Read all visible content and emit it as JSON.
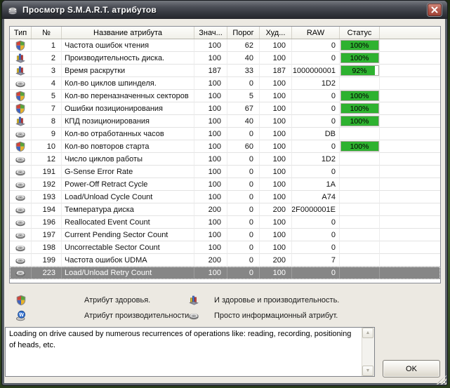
{
  "window": {
    "title": "Просмотр S.M.A.R.T. атрибутов",
    "app_icon": "app-icon",
    "close_icon": "close-icon"
  },
  "table": {
    "columns": [
      "Тип",
      "№",
      "Название атрибута",
      "Знач...",
      "Порог",
      "Худ...",
      "RAW",
      "Статус"
    ],
    "rows": [
      {
        "icon": "shield",
        "num": "1",
        "name": "Частота ошибок чтения",
        "value": "100",
        "threshold": "62",
        "worst": "100",
        "raw": "0",
        "status": "100%",
        "status_pct": 100,
        "selected": false
      },
      {
        "icon": "chart",
        "num": "2",
        "name": "Производительность диска.",
        "value": "100",
        "threshold": "40",
        "worst": "100",
        "raw": "0",
        "status": "100%",
        "status_pct": 100,
        "selected": false
      },
      {
        "icon": "chart",
        "num": "3",
        "name": "Время раскрутки",
        "value": "187",
        "threshold": "33",
        "worst": "187",
        "raw": "1000000001",
        "status": "92%",
        "status_pct": 92,
        "selected": false
      },
      {
        "icon": "disk",
        "num": "4",
        "name": "Кол-во циклов шпинделя.",
        "value": "100",
        "threshold": "0",
        "worst": "100",
        "raw": "1D2",
        "status": null,
        "status_pct": null,
        "selected": false
      },
      {
        "icon": "shield",
        "num": "5",
        "name": "Кол-во переназначенных секторов",
        "value": "100",
        "threshold": "5",
        "worst": "100",
        "raw": "0",
        "status": "100%",
        "status_pct": 100,
        "selected": false
      },
      {
        "icon": "shield",
        "num": "7",
        "name": "Ошибки позиционирования",
        "value": "100",
        "threshold": "67",
        "worst": "100",
        "raw": "0",
        "status": "100%",
        "status_pct": 100,
        "selected": false
      },
      {
        "icon": "chart",
        "num": "8",
        "name": "КПД позиционирования",
        "value": "100",
        "threshold": "40",
        "worst": "100",
        "raw": "0",
        "status": "100%",
        "status_pct": 100,
        "selected": false
      },
      {
        "icon": "disk",
        "num": "9",
        "name": "Кол-во отработанных часов",
        "value": "100",
        "threshold": "0",
        "worst": "100",
        "raw": "DB",
        "status": null,
        "status_pct": null,
        "selected": false
      },
      {
        "icon": "shield",
        "num": "10",
        "name": "Кол-во повторов старта",
        "value": "100",
        "threshold": "60",
        "worst": "100",
        "raw": "0",
        "status": "100%",
        "status_pct": 100,
        "selected": false
      },
      {
        "icon": "disk",
        "num": "12",
        "name": "Число циклов работы",
        "value": "100",
        "threshold": "0",
        "worst": "100",
        "raw": "1D2",
        "status": null,
        "status_pct": null,
        "selected": false
      },
      {
        "icon": "disk",
        "num": "191",
        "name": "G-Sense Error Rate",
        "value": "100",
        "threshold": "0",
        "worst": "100",
        "raw": "0",
        "status": null,
        "status_pct": null,
        "selected": false
      },
      {
        "icon": "disk",
        "num": "192",
        "name": "Power-Off Retract Cycle",
        "value": "100",
        "threshold": "0",
        "worst": "100",
        "raw": "1A",
        "status": null,
        "status_pct": null,
        "selected": false
      },
      {
        "icon": "disk",
        "num": "193",
        "name": "Load/Unload Cycle Count",
        "value": "100",
        "threshold": "0",
        "worst": "100",
        "raw": "A74",
        "status": null,
        "status_pct": null,
        "selected": false
      },
      {
        "icon": "disk",
        "num": "194",
        "name": "Температура диска",
        "value": "200",
        "threshold": "0",
        "worst": "200",
        "raw": "2F0000001E",
        "status": null,
        "status_pct": null,
        "selected": false
      },
      {
        "icon": "disk",
        "num": "196",
        "name": "Reallocated Event Count",
        "value": "100",
        "threshold": "0",
        "worst": "100",
        "raw": "0",
        "status": null,
        "status_pct": null,
        "selected": false
      },
      {
        "icon": "disk",
        "num": "197",
        "name": "Current Pending Sector Count",
        "value": "100",
        "threshold": "0",
        "worst": "100",
        "raw": "0",
        "status": null,
        "status_pct": null,
        "selected": false
      },
      {
        "icon": "disk",
        "num": "198",
        "name": "Uncorrectable Sector Count",
        "value": "100",
        "threshold": "0",
        "worst": "100",
        "raw": "0",
        "status": null,
        "status_pct": null,
        "selected": false
      },
      {
        "icon": "disk",
        "num": "199",
        "name": "Частота ошибок UDMA",
        "value": "200",
        "threshold": "0",
        "worst": "200",
        "raw": "7",
        "status": null,
        "status_pct": null,
        "selected": false
      },
      {
        "icon": "disk",
        "num": "223",
        "name": "Load/Unload Retry Count",
        "value": "100",
        "threshold": "0",
        "worst": "100",
        "raw": "0",
        "status": null,
        "status_pct": null,
        "selected": true
      }
    ]
  },
  "legend": {
    "items": [
      {
        "icon": "shield",
        "label": "Атрибут здоровья."
      },
      {
        "icon": "wball",
        "label": "Атрибут производительности."
      },
      {
        "icon": "chart",
        "label": "И здоровье и производительность."
      },
      {
        "icon": "disk",
        "label": "Просто информационный атрибут."
      }
    ]
  },
  "description": {
    "text": "Loading on drive caused by numerous recurrences of operations like: reading, recording, positioning of heads, etc.",
    "scroll_up_glyph": "▲",
    "scroll_down_glyph": "▼"
  },
  "ok_button": {
    "label": "OK"
  },
  "colors": {
    "status_green": "#2eb230",
    "selection_gray": "#868686",
    "titlebar_dark": "#3c3f46",
    "desktop_green": "#33491f"
  }
}
